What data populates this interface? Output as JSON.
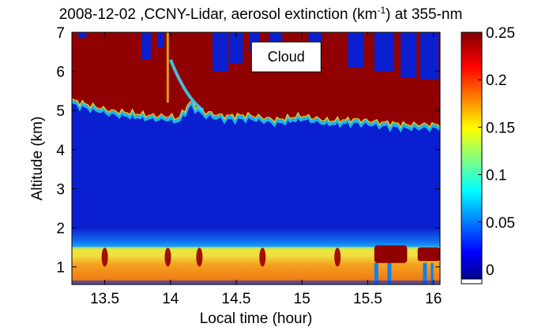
{
  "chart_data": {
    "type": "heatmap",
    "title": {
      "pre": "2008-12-02 ,CCNY-Lidar, aerosol extinction (km",
      "sup": "-1",
      "post": ") at 355-nm"
    },
    "xlabel": "Local time (hour)",
    "ylabel": "Altitude (km)",
    "xlim": [
      13.25,
      16.05
    ],
    "ylim": [
      0.55,
      7.0
    ],
    "xticks": [
      13.5,
      14,
      14.5,
      15,
      15.5,
      16
    ],
    "xtick_labels": [
      "13.5",
      "14",
      "14.5",
      "15",
      "15.5",
      "16"
    ],
    "yticks": [
      1,
      2,
      3,
      4,
      5,
      6,
      7
    ],
    "ytick_labels": [
      "1",
      "2",
      "3",
      "4",
      "5",
      "6",
      "7"
    ],
    "colorbar": {
      "range": [
        -0.01,
        0.25
      ],
      "ticks": [
        0,
        0.05,
        0.1,
        0.15,
        0.2,
        0.25
      ],
      "tick_labels": [
        "0",
        "0.05",
        "0.1",
        "0.15",
        "0.2",
        "0.25"
      ],
      "colormap": "jet"
    },
    "annotation": {
      "text": "Cloud",
      "x": 14.88,
      "y": 6.27
    },
    "colors": {
      "background_blue": "#0a1fd0",
      "cloud_red": "#900000",
      "boundary_layer_orange": "#f07010"
    },
    "cloud_base_km": [
      [
        13.25,
        5.25
      ],
      [
        13.4,
        5.1
      ],
      [
        13.55,
        4.97
      ],
      [
        13.7,
        4.92
      ],
      [
        13.85,
        4.85
      ],
      [
        14.0,
        4.83
      ],
      [
        14.06,
        4.77
      ],
      [
        14.15,
        5.2
      ],
      [
        14.25,
        4.95
      ],
      [
        14.4,
        4.84
      ],
      [
        14.6,
        4.86
      ],
      [
        14.8,
        4.74
      ],
      [
        15.0,
        4.85
      ],
      [
        15.2,
        4.72
      ],
      [
        15.4,
        4.75
      ],
      [
        15.6,
        4.68
      ],
      [
        15.8,
        4.62
      ],
      [
        16.05,
        4.62
      ]
    ],
    "boundary_layer_top_km": [
      [
        13.25,
        1.5
      ],
      [
        14.0,
        1.45
      ],
      [
        14.5,
        1.45
      ],
      [
        15.0,
        1.42
      ],
      [
        15.5,
        1.45
      ],
      [
        16.05,
        1.5
      ]
    ]
  }
}
